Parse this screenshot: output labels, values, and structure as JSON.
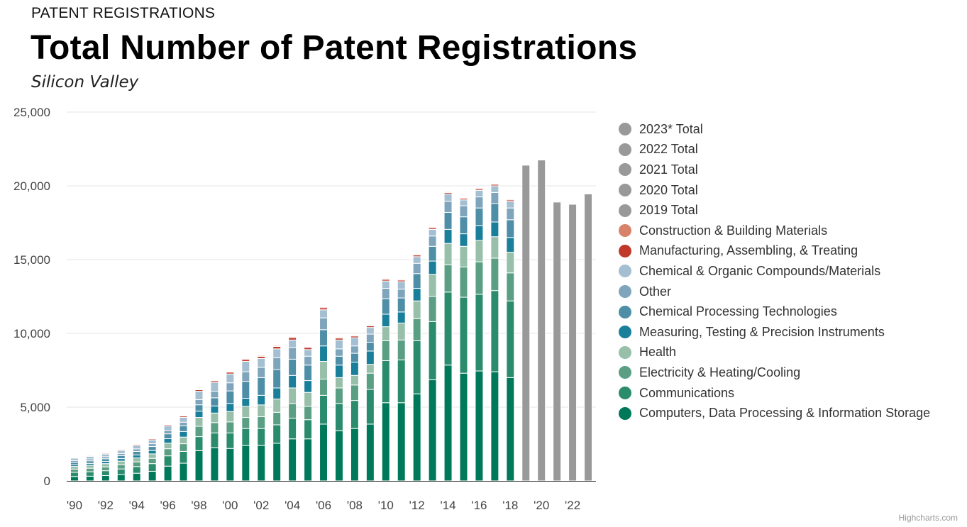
{
  "header": {
    "kicker": "PATENT REGISTRATIONS",
    "title": "Total Number of Patent Registrations",
    "subtitle": "Silicon Valley"
  },
  "credits": "Highcharts.com",
  "chart_data": {
    "type": "bar",
    "stacked": true,
    "ylim": [
      0,
      25000
    ],
    "y_ticks": [
      "0",
      "5,000",
      "10,000",
      "15,000",
      "20,000",
      "25,000"
    ],
    "x_tick_labels": [
      "'90",
      "'92",
      "'94",
      "'96",
      "'98",
      "'00",
      "'02",
      "'04",
      "'06",
      "'08",
      "'10",
      "'12",
      "'14",
      "'16",
      "'18",
      "'20",
      "'22"
    ],
    "grid": true,
    "legend_position": "right",
    "categories": [
      1990,
      1991,
      1992,
      1993,
      1994,
      1995,
      1996,
      1997,
      1998,
      1999,
      2000,
      2001,
      2002,
      2003,
      2004,
      2005,
      2006,
      2007,
      2008,
      2009,
      2010,
      2011,
      2012,
      2013,
      2014,
      2015,
      2016,
      2017,
      2018,
      2019,
      2020,
      2021,
      2022,
      2023
    ],
    "series": [
      {
        "name": "Computers, Data Processing & Information Storage",
        "color": "#00785a",
        "values": [
          300,
          320,
          360,
          430,
          520,
          650,
          1000,
          1200,
          2050,
          2250,
          2200,
          2400,
          2400,
          2550,
          2850,
          2850,
          3850,
          3400,
          3550,
          3850,
          5300,
          5300,
          5900,
          6850,
          7850,
          7300,
          7450,
          7400,
          7000,
          null,
          null,
          null,
          null,
          null
        ]
      },
      {
        "name": "Communications",
        "color": "#2a8c6c",
        "values": [
          280,
          300,
          330,
          380,
          450,
          520,
          700,
          800,
          950,
          1000,
          1050,
          1150,
          1150,
          1250,
          1400,
          1300,
          1950,
          1850,
          1900,
          2350,
          2850,
          2900,
          3600,
          3950,
          4950,
          5150,
          5200,
          5500,
          5200,
          null,
          null,
          null,
          null,
          null
        ]
      },
      {
        "name": "Electricity & Heating/Cooling",
        "color": "#5a9e84",
        "values": [
          220,
          240,
          260,
          290,
          320,
          360,
          480,
          520,
          700,
          700,
          750,
          750,
          800,
          850,
          1000,
          900,
          1100,
          1050,
          1050,
          1100,
          1350,
          1350,
          1500,
          1700,
          1850,
          2050,
          2200,
          2200,
          1900,
          null,
          null,
          null,
          null,
          null
        ]
      },
      {
        "name": "Health",
        "color": "#97bfa9",
        "values": [
          180,
          200,
          220,
          240,
          270,
          300,
          380,
          450,
          600,
          650,
          700,
          750,
          800,
          900,
          1050,
          950,
          1200,
          700,
          650,
          600,
          950,
          1150,
          1200,
          1500,
          1450,
          1400,
          1450,
          1450,
          1400,
          null,
          null,
          null,
          null,
          null
        ]
      },
      {
        "name": "Measuring, Testing & Precision Instruments",
        "color": "#1a7f9a",
        "values": [
          120,
          130,
          150,
          170,
          200,
          230,
          300,
          380,
          430,
          480,
          550,
          550,
          650,
          750,
          850,
          800,
          1050,
          850,
          900,
          900,
          850,
          750,
          850,
          900,
          950,
          850,
          1000,
          1000,
          1000,
          null,
          null,
          null,
          null,
          null
        ]
      },
      {
        "name": "Chemical Processing Technologies",
        "color": "#4e8ea6",
        "values": [
          160,
          170,
          180,
          200,
          240,
          270,
          330,
          380,
          430,
          550,
          850,
          1150,
          1200,
          1250,
          1100,
          1050,
          1100,
          600,
          600,
          600,
          1050,
          950,
          1000,
          1000,
          1150,
          1150,
          1200,
          1250,
          1200,
          null,
          null,
          null,
          null,
          null
        ]
      },
      {
        "name": "Other",
        "color": "#7ea5bc",
        "values": [
          120,
          130,
          140,
          150,
          170,
          190,
          240,
          250,
          350,
          450,
          550,
          650,
          700,
          800,
          800,
          600,
          800,
          500,
          500,
          550,
          700,
          600,
          700,
          700,
          750,
          750,
          750,
          750,
          800,
          null,
          null,
          null,
          null,
          null
        ]
      },
      {
        "name": "Chemical & Organic Compounds/Materials",
        "color": "#a4bfd2",
        "values": [
          160,
          170,
          180,
          200,
          230,
          260,
          300,
          330,
          570,
          600,
          600,
          700,
          600,
          600,
          500,
          450,
          550,
          600,
          550,
          450,
          500,
          500,
          450,
          450,
          500,
          400,
          450,
          450,
          450,
          null,
          null,
          null,
          null,
          null
        ]
      },
      {
        "name": "Manufacturing, Assembling, & Treating",
        "color": "#c0392b",
        "values": [
          50,
          55,
          60,
          65,
          70,
          75,
          80,
          90,
          100,
          110,
          120,
          130,
          140,
          160,
          160,
          140,
          140,
          130,
          120,
          110,
          110,
          110,
          110,
          110,
          100,
          100,
          100,
          100,
          100,
          null,
          null,
          null,
          null,
          null
        ]
      },
      {
        "name": "Construction & Building Materials",
        "color": "#d9826a",
        "values": [
          30,
          30,
          35,
          35,
          40,
          40,
          45,
          45,
          50,
          50,
          55,
          60,
          60,
          60,
          60,
          60,
          60,
          60,
          55,
          55,
          55,
          55,
          55,
          55,
          55,
          55,
          55,
          55,
          55,
          null,
          null,
          null,
          null,
          null
        ]
      },
      {
        "name": "2019 Total",
        "color": "#999999",
        "values": [
          null,
          null,
          null,
          null,
          null,
          null,
          null,
          null,
          null,
          null,
          null,
          null,
          null,
          null,
          null,
          null,
          null,
          null,
          null,
          null,
          null,
          null,
          null,
          null,
          null,
          null,
          null,
          null,
          null,
          21400,
          null,
          null,
          null,
          null
        ]
      },
      {
        "name": "2020 Total",
        "color": "#999999",
        "values": [
          null,
          null,
          null,
          null,
          null,
          null,
          null,
          null,
          null,
          null,
          null,
          null,
          null,
          null,
          null,
          null,
          null,
          null,
          null,
          null,
          null,
          null,
          null,
          null,
          null,
          null,
          null,
          null,
          null,
          null,
          21750,
          null,
          null,
          null
        ]
      },
      {
        "name": "2021 Total",
        "color": "#999999",
        "values": [
          null,
          null,
          null,
          null,
          null,
          null,
          null,
          null,
          null,
          null,
          null,
          null,
          null,
          null,
          null,
          null,
          null,
          null,
          null,
          null,
          null,
          null,
          null,
          null,
          null,
          null,
          null,
          null,
          null,
          null,
          null,
          18900,
          null,
          null
        ]
      },
      {
        "name": "2022 Total",
        "color": "#999999",
        "values": [
          null,
          null,
          null,
          null,
          null,
          null,
          null,
          null,
          null,
          null,
          null,
          null,
          null,
          null,
          null,
          null,
          null,
          null,
          null,
          null,
          null,
          null,
          null,
          null,
          null,
          null,
          null,
          null,
          null,
          null,
          null,
          null,
          18750,
          null
        ]
      },
      {
        "name": "2023* Total",
        "color": "#999999",
        "values": [
          null,
          null,
          null,
          null,
          null,
          null,
          null,
          null,
          null,
          null,
          null,
          null,
          null,
          null,
          null,
          null,
          null,
          null,
          null,
          null,
          null,
          null,
          null,
          null,
          null,
          null,
          null,
          null,
          null,
          null,
          null,
          null,
          null,
          19450
        ]
      }
    ]
  }
}
